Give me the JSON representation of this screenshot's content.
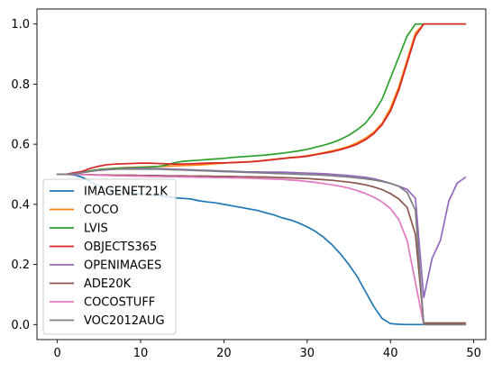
{
  "chart_data": {
    "type": "line",
    "title": "",
    "xlabel": "",
    "ylabel": "",
    "xlim": [
      -2.45,
      51.45
    ],
    "ylim": [
      -0.05,
      1.05
    ],
    "xticks": [
      0,
      10,
      20,
      30,
      40,
      50
    ],
    "yticks": [
      0.0,
      0.2,
      0.4,
      0.6,
      0.8,
      1.0
    ],
    "xtick_labels": [
      "0",
      "10",
      "20",
      "30",
      "40",
      "50"
    ],
    "ytick_labels": [
      "0.0",
      "0.2",
      "0.4",
      "0.6",
      "0.8",
      "1.0"
    ],
    "grid": false,
    "legend_position": "lower-left",
    "x": [
      0,
      1,
      2,
      3,
      4,
      5,
      6,
      7,
      8,
      9,
      10,
      11,
      12,
      13,
      14,
      15,
      16,
      17,
      18,
      19,
      20,
      21,
      22,
      23,
      24,
      25,
      26,
      27,
      28,
      29,
      30,
      31,
      32,
      33,
      34,
      35,
      36,
      37,
      38,
      39,
      40,
      41,
      42,
      43,
      44,
      45,
      46,
      47,
      48,
      49
    ],
    "series": [
      {
        "name": "IMAGENET21K",
        "color": "#1f77b4",
        "values": [
          0.5,
          0.5,
          0.498,
          0.49,
          0.475,
          0.46,
          0.45,
          0.445,
          0.44,
          0.438,
          0.435,
          0.432,
          0.43,
          0.427,
          0.422,
          0.42,
          0.418,
          0.412,
          0.408,
          0.405,
          0.4,
          0.395,
          0.39,
          0.385,
          0.38,
          0.372,
          0.365,
          0.355,
          0.348,
          0.338,
          0.325,
          0.31,
          0.29,
          0.265,
          0.235,
          0.2,
          0.16,
          0.11,
          0.06,
          0.02,
          0.003,
          0.001,
          0.0,
          0.0,
          0.0,
          0.0,
          0.0,
          0.0,
          0.0,
          0.0
        ]
      },
      {
        "name": "COCO",
        "color": "#ff7f0e",
        "values": [
          0.5,
          0.5,
          0.502,
          0.505,
          0.51,
          0.515,
          0.518,
          0.52,
          0.522,
          0.523,
          0.524,
          0.525,
          0.526,
          0.527,
          0.528,
          0.529,
          0.53,
          0.531,
          0.533,
          0.535,
          0.537,
          0.539,
          0.54,
          0.542,
          0.544,
          0.547,
          0.55,
          0.553,
          0.556,
          0.558,
          0.562,
          0.567,
          0.572,
          0.578,
          0.585,
          0.593,
          0.605,
          0.62,
          0.64,
          0.67,
          0.72,
          0.79,
          0.88,
          0.97,
          1.0,
          1.0,
          1.0,
          1.0,
          1.0,
          1.0
        ]
      },
      {
        "name": "LVIS",
        "color": "#2ca02c",
        "values": [
          0.5,
          0.5,
          0.502,
          0.506,
          0.512,
          0.516,
          0.518,
          0.52,
          0.521,
          0.522,
          0.523,
          0.524,
          0.526,
          0.53,
          0.538,
          0.543,
          0.545,
          0.547,
          0.549,
          0.551,
          0.553,
          0.556,
          0.558,
          0.56,
          0.562,
          0.564,
          0.567,
          0.57,
          0.574,
          0.578,
          0.583,
          0.59,
          0.597,
          0.605,
          0.616,
          0.63,
          0.648,
          0.67,
          0.705,
          0.75,
          0.82,
          0.89,
          0.96,
          1.0,
          1.0,
          1.0,
          1.0,
          1.0,
          1.0,
          1.0
        ]
      },
      {
        "name": "OBJECTS365",
        "color": "#d62728",
        "values": [
          0.5,
          0.5,
          0.505,
          0.51,
          0.52,
          0.527,
          0.532,
          0.534,
          0.535,
          0.536,
          0.537,
          0.537,
          0.536,
          0.535,
          0.534,
          0.534,
          0.535,
          0.536,
          0.537,
          0.538,
          0.538,
          0.539,
          0.54,
          0.541,
          0.543,
          0.546,
          0.549,
          0.552,
          0.555,
          0.557,
          0.56,
          0.565,
          0.57,
          0.575,
          0.582,
          0.59,
          0.6,
          0.615,
          0.635,
          0.665,
          0.71,
          0.78,
          0.87,
          0.96,
          1.0,
          1.0,
          1.0,
          1.0,
          1.0,
          1.0
        ]
      },
      {
        "name": "OPENIMAGES",
        "color": "#9467bd",
        "values": [
          0.5,
          0.5,
          0.502,
          0.506,
          0.51,
          0.513,
          0.515,
          0.517,
          0.518,
          0.519,
          0.519,
          0.519,
          0.519,
          0.518,
          0.517,
          0.516,
          0.515,
          0.514,
          0.513,
          0.512,
          0.511,
          0.51,
          0.509,
          0.508,
          0.508,
          0.507,
          0.507,
          0.507,
          0.506,
          0.505,
          0.504,
          0.503,
          0.502,
          0.5,
          0.498,
          0.496,
          0.493,
          0.49,
          0.485,
          0.478,
          0.47,
          0.46,
          0.45,
          0.42,
          0.09,
          0.22,
          0.28,
          0.41,
          0.47,
          0.49
        ]
      },
      {
        "name": "ADE20K",
        "color": "#8c564b",
        "values": [
          0.5,
          0.5,
          0.5,
          0.499,
          0.499,
          0.498,
          0.498,
          0.497,
          0.497,
          0.497,
          0.496,
          0.496,
          0.496,
          0.495,
          0.495,
          0.495,
          0.494,
          0.494,
          0.494,
          0.493,
          0.493,
          0.493,
          0.492,
          0.492,
          0.491,
          0.491,
          0.49,
          0.489,
          0.488,
          0.487,
          0.486,
          0.484,
          0.482,
          0.48,
          0.477,
          0.474,
          0.47,
          0.465,
          0.458,
          0.449,
          0.436,
          0.418,
          0.39,
          0.3,
          0.005,
          0.005,
          0.005,
          0.005,
          0.005,
          0.005
        ]
      },
      {
        "name": "COCOSTUFF",
        "color": "#e377c2",
        "values": [
          0.5,
          0.5,
          0.5,
          0.499,
          0.498,
          0.497,
          0.496,
          0.495,
          0.495,
          0.494,
          0.494,
          0.493,
          0.493,
          0.492,
          0.492,
          0.491,
          0.491,
          0.49,
          0.49,
          0.489,
          0.489,
          0.488,
          0.488,
          0.487,
          0.486,
          0.485,
          0.484,
          0.483,
          0.481,
          0.479,
          0.476,
          0.473,
          0.469,
          0.465,
          0.46,
          0.454,
          0.446,
          0.436,
          0.424,
          0.408,
          0.386,
          0.35,
          0.28,
          0.14,
          0.0,
          0.0,
          0.0,
          0.0,
          0.0,
          0.0
        ]
      },
      {
        "name": "VOC2012AUG",
        "color": "#7f7f7f",
        "values": [
          0.5,
          0.5,
          0.501,
          0.505,
          0.51,
          0.514,
          0.516,
          0.517,
          0.517,
          0.517,
          0.517,
          0.517,
          0.517,
          0.516,
          0.515,
          0.514,
          0.513,
          0.512,
          0.511,
          0.51,
          0.509,
          0.508,
          0.507,
          0.506,
          0.505,
          0.504,
          0.503,
          0.502,
          0.501,
          0.5,
          0.499,
          0.498,
          0.497,
          0.495,
          0.493,
          0.491,
          0.488,
          0.485,
          0.481,
          0.476,
          0.47,
          0.46,
          0.44,
          0.38,
          0.0,
          0.0,
          0.0,
          0.0,
          0.0,
          0.0
        ]
      }
    ]
  }
}
